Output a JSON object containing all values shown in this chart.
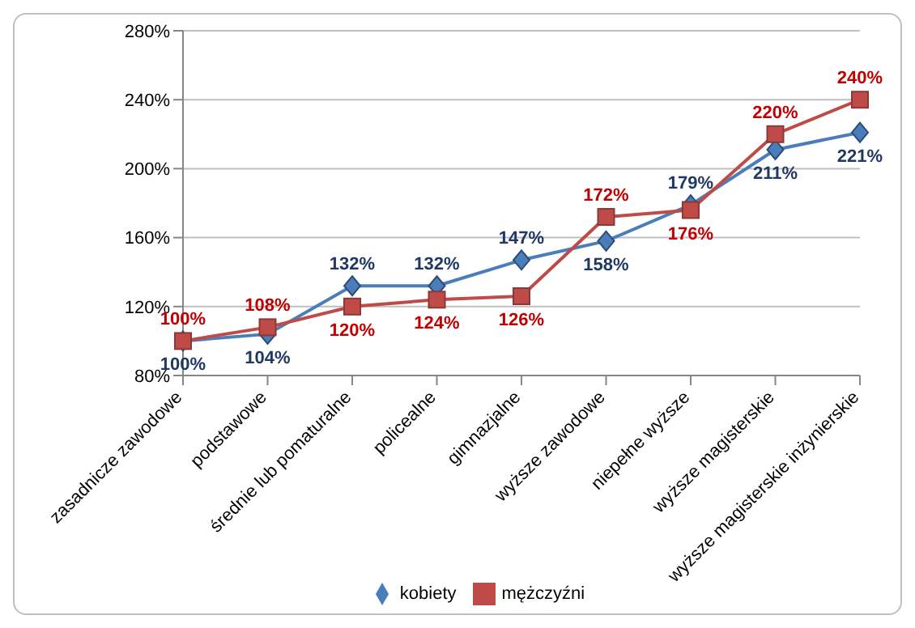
{
  "chart_data": {
    "type": "line",
    "categories": [
      "zasadnicze zawodowe",
      "podstawowe",
      "średnie lub pomaturalne",
      "policealne",
      "gimnazjalne",
      "wyższe zawodowe",
      "niepełne wyższe",
      "wyższe magisterskie",
      "wyższe magisterskie inżynierskie"
    ],
    "series": [
      {
        "name": "kobiety",
        "color": "#4a7ebb",
        "marker": "diamond",
        "values": [
          100,
          104,
          132,
          132,
          147,
          158,
          179,
          211,
          221
        ],
        "value_labels": [
          "100%",
          "104%",
          "132%",
          "132%",
          "147%",
          "158%",
          "179%",
          "211%",
          "221%"
        ]
      },
      {
        "name": "mężczyźni",
        "color": "#be4b48",
        "marker": "square",
        "values": [
          100,
          108,
          120,
          124,
          126,
          172,
          176,
          220,
          240
        ],
        "value_labels": [
          "100%",
          "108%",
          "120%",
          "124%",
          "126%",
          "172%",
          "176%",
          "220%",
          "240%"
        ]
      }
    ],
    "ylim": [
      80,
      280
    ],
    "yticks": [
      {
        "value": 80,
        "label": "80%"
      },
      {
        "value": 120,
        "label": "120%"
      },
      {
        "value": 160,
        "label": "160%"
      },
      {
        "value": 200,
        "label": "200%"
      },
      {
        "value": 240,
        "label": "240%"
      },
      {
        "value": 280,
        "label": "280%"
      }
    ],
    "grid": "y",
    "legend": "bottom"
  }
}
